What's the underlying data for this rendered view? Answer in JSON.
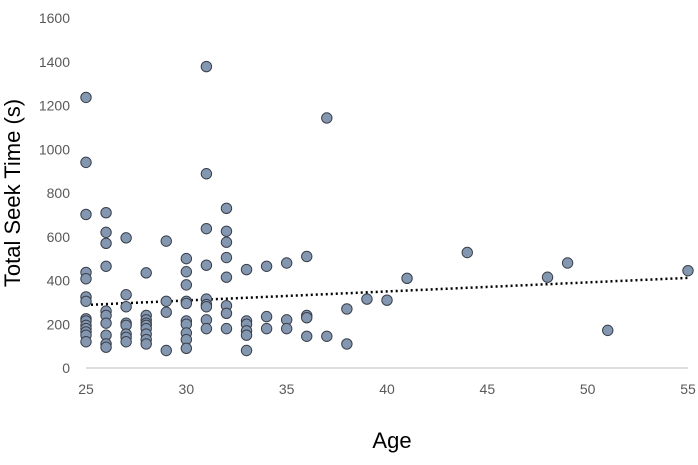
{
  "chart_data": {
    "type": "scatter",
    "xlabel": "Age",
    "ylabel": "Total Seek Time (s)",
    "xlim": [
      25,
      55
    ],
    "ylim": [
      0,
      1600
    ],
    "xticks": [
      25,
      30,
      35,
      40,
      45,
      50,
      55
    ],
    "yticks": [
      0,
      200,
      400,
      600,
      800,
      1000,
      1200,
      1400,
      1600
    ],
    "grid": false,
    "legend": "none",
    "marker_fill": "#8497b0",
    "marker_stroke": "#3a3f4b",
    "trendline": {
      "type": "linear",
      "style": "dotted",
      "color": "#000000",
      "start": [
        25,
        288
      ],
      "end": [
        55,
        412
      ]
    },
    "points": [
      [
        25,
        1237
      ],
      [
        25,
        940
      ],
      [
        25,
        702
      ],
      [
        25,
        437
      ],
      [
        25,
        408
      ],
      [
        25,
        325
      ],
      [
        25,
        305
      ],
      [
        25,
        225
      ],
      [
        25,
        215
      ],
      [
        25,
        195
      ],
      [
        25,
        180
      ],
      [
        25,
        165
      ],
      [
        25,
        150
      ],
      [
        25,
        120
      ],
      [
        26,
        710
      ],
      [
        26,
        620
      ],
      [
        26,
        570
      ],
      [
        26,
        465
      ],
      [
        26,
        260
      ],
      [
        26,
        240
      ],
      [
        26,
        205
      ],
      [
        26,
        150
      ],
      [
        26,
        110
      ],
      [
        26,
        95
      ],
      [
        27,
        595
      ],
      [
        27,
        335
      ],
      [
        27,
        280
      ],
      [
        27,
        205
      ],
      [
        27,
        195
      ],
      [
        27,
        155
      ],
      [
        27,
        140
      ],
      [
        27,
        120
      ],
      [
        28,
        435
      ],
      [
        28,
        240
      ],
      [
        28,
        220
      ],
      [
        28,
        205
      ],
      [
        28,
        195
      ],
      [
        28,
        180
      ],
      [
        28,
        155
      ],
      [
        28,
        130
      ],
      [
        28,
        110
      ],
      [
        29,
        580
      ],
      [
        29,
        305
      ],
      [
        29,
        255
      ],
      [
        29,
        80
      ],
      [
        30,
        500
      ],
      [
        30,
        440
      ],
      [
        30,
        380
      ],
      [
        30,
        305
      ],
      [
        30,
        295
      ],
      [
        30,
        215
      ],
      [
        30,
        200
      ],
      [
        30,
        160
      ],
      [
        30,
        130
      ],
      [
        30,
        90
      ],
      [
        31,
        1378
      ],
      [
        31,
        888
      ],
      [
        31,
        637
      ],
      [
        31,
        470
      ],
      [
        31,
        315
      ],
      [
        31,
        290
      ],
      [
        31,
        280
      ],
      [
        31,
        220
      ],
      [
        31,
        180
      ],
      [
        32,
        730
      ],
      [
        32,
        625
      ],
      [
        32,
        575
      ],
      [
        32,
        505
      ],
      [
        32,
        415
      ],
      [
        32,
        285
      ],
      [
        32,
        250
      ],
      [
        32,
        180
      ],
      [
        33,
        450
      ],
      [
        33,
        215
      ],
      [
        33,
        200
      ],
      [
        33,
        170
      ],
      [
        33,
        150
      ],
      [
        33,
        80
      ],
      [
        34,
        465
      ],
      [
        34,
        235
      ],
      [
        34,
        180
      ],
      [
        35,
        480
      ],
      [
        35,
        220
      ],
      [
        35,
        180
      ],
      [
        36,
        510
      ],
      [
        36,
        240
      ],
      [
        36,
        230
      ],
      [
        36,
        145
      ],
      [
        37,
        1143
      ],
      [
        37,
        145
      ],
      [
        38,
        270
      ],
      [
        38,
        110
      ],
      [
        39,
        315
      ],
      [
        40,
        310
      ],
      [
        41,
        410
      ],
      [
        44,
        528
      ],
      [
        48,
        415
      ],
      [
        49,
        480
      ],
      [
        51,
        172
      ],
      [
        55,
        445
      ]
    ]
  }
}
